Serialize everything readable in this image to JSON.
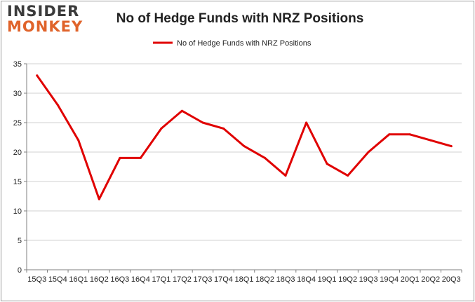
{
  "logo": {
    "line1": "INSIDER",
    "line2": "MONKEY"
  },
  "chart_data": {
    "type": "line",
    "title": "No of Hedge Funds with NRZ Positions",
    "xlabel": "",
    "ylabel": "",
    "categories": [
      "15Q3",
      "15Q4",
      "16Q1",
      "16Q2",
      "16Q3",
      "16Q4",
      "17Q1",
      "17Q2",
      "17Q3",
      "17Q4",
      "18Q1",
      "18Q2",
      "18Q3",
      "18Q4",
      "19Q1",
      "19Q2",
      "19Q3",
      "19Q4",
      "20Q1",
      "20Q2",
      "20Q3"
    ],
    "series": [
      {
        "name": "No of Hedge Funds with NRZ Positions",
        "color": "#e00000",
        "values": [
          33,
          28,
          22,
          12,
          19,
          19,
          24,
          27,
          25,
          24,
          21,
          19,
          16,
          25,
          18,
          16,
          20,
          23,
          23,
          22,
          21
        ]
      }
    ],
    "ylim": [
      0,
      35
    ],
    "yticks": [
      "0",
      "5",
      "10",
      "15",
      "20",
      "25",
      "30",
      "35"
    ],
    "grid": true,
    "legend_position": "top-center"
  }
}
